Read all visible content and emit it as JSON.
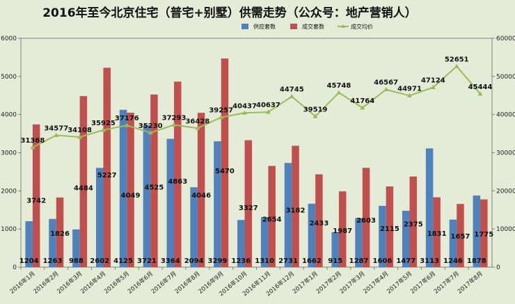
{
  "chart_data": {
    "type": "bar",
    "title": "2016年至今北京住宅（普宅+别墅）供需走势（公众号：地产营销人）",
    "categories": [
      "2016年1月",
      "2016年2月",
      "2016年3月",
      "2016年4月",
      "2016年5月",
      "2016年6月",
      "2016年7月",
      "2016年8月",
      "2016年9月",
      "2016年10月",
      "2016年11月",
      "2016年12月",
      "2017年1月",
      "2017年2月",
      "2017年3月",
      "2017年4月",
      "2017年5月",
      "2017年6月",
      "2017年7月",
      "2017年8月"
    ],
    "series": [
      {
        "name": "供应套数",
        "type": "bar",
        "axis": "left",
        "color": "#4f81bd",
        "values": [
          1204,
          1263,
          988,
          2602,
          4125,
          3721,
          3364,
          2094,
          3299,
          1236,
          1310,
          2731,
          1662,
          915,
          1287,
          1606,
          1477,
          3113,
          1246,
          1878
        ]
      },
      {
        "name": "成交套数",
        "type": "bar",
        "axis": "left",
        "color": "#c0504d",
        "values": [
          3742,
          1826,
          4484,
          5227,
          4049,
          4525,
          4863,
          4046,
          5470,
          3327,
          2654,
          3182,
          2433,
          1987,
          2603,
          2115,
          2375,
          1831,
          1657,
          1775
        ]
      },
      {
        "name": "成交均价",
        "type": "line",
        "axis": "right",
        "color": "#9bbb59",
        "values": [
          31368,
          34577,
          34108,
          35925,
          37176,
          35230,
          37293,
          36428,
          39257,
          40437,
          40637,
          44745,
          39519,
          45748,
          41764,
          46567,
          44971,
          47124,
          52651,
          45444
        ]
      }
    ],
    "ylim": [
      0,
      6000
    ],
    "y2lim": [
      0,
      60000
    ],
    "yticks": [
      "0",
      "1000",
      "2000",
      "3000",
      "4000",
      "5000",
      "6000"
    ],
    "y2ticks": [
      "0",
      "10000",
      "20000",
      "30000",
      "40000",
      "50000",
      "60000"
    ],
    "legend_position": "top-right",
    "grid": false
  }
}
